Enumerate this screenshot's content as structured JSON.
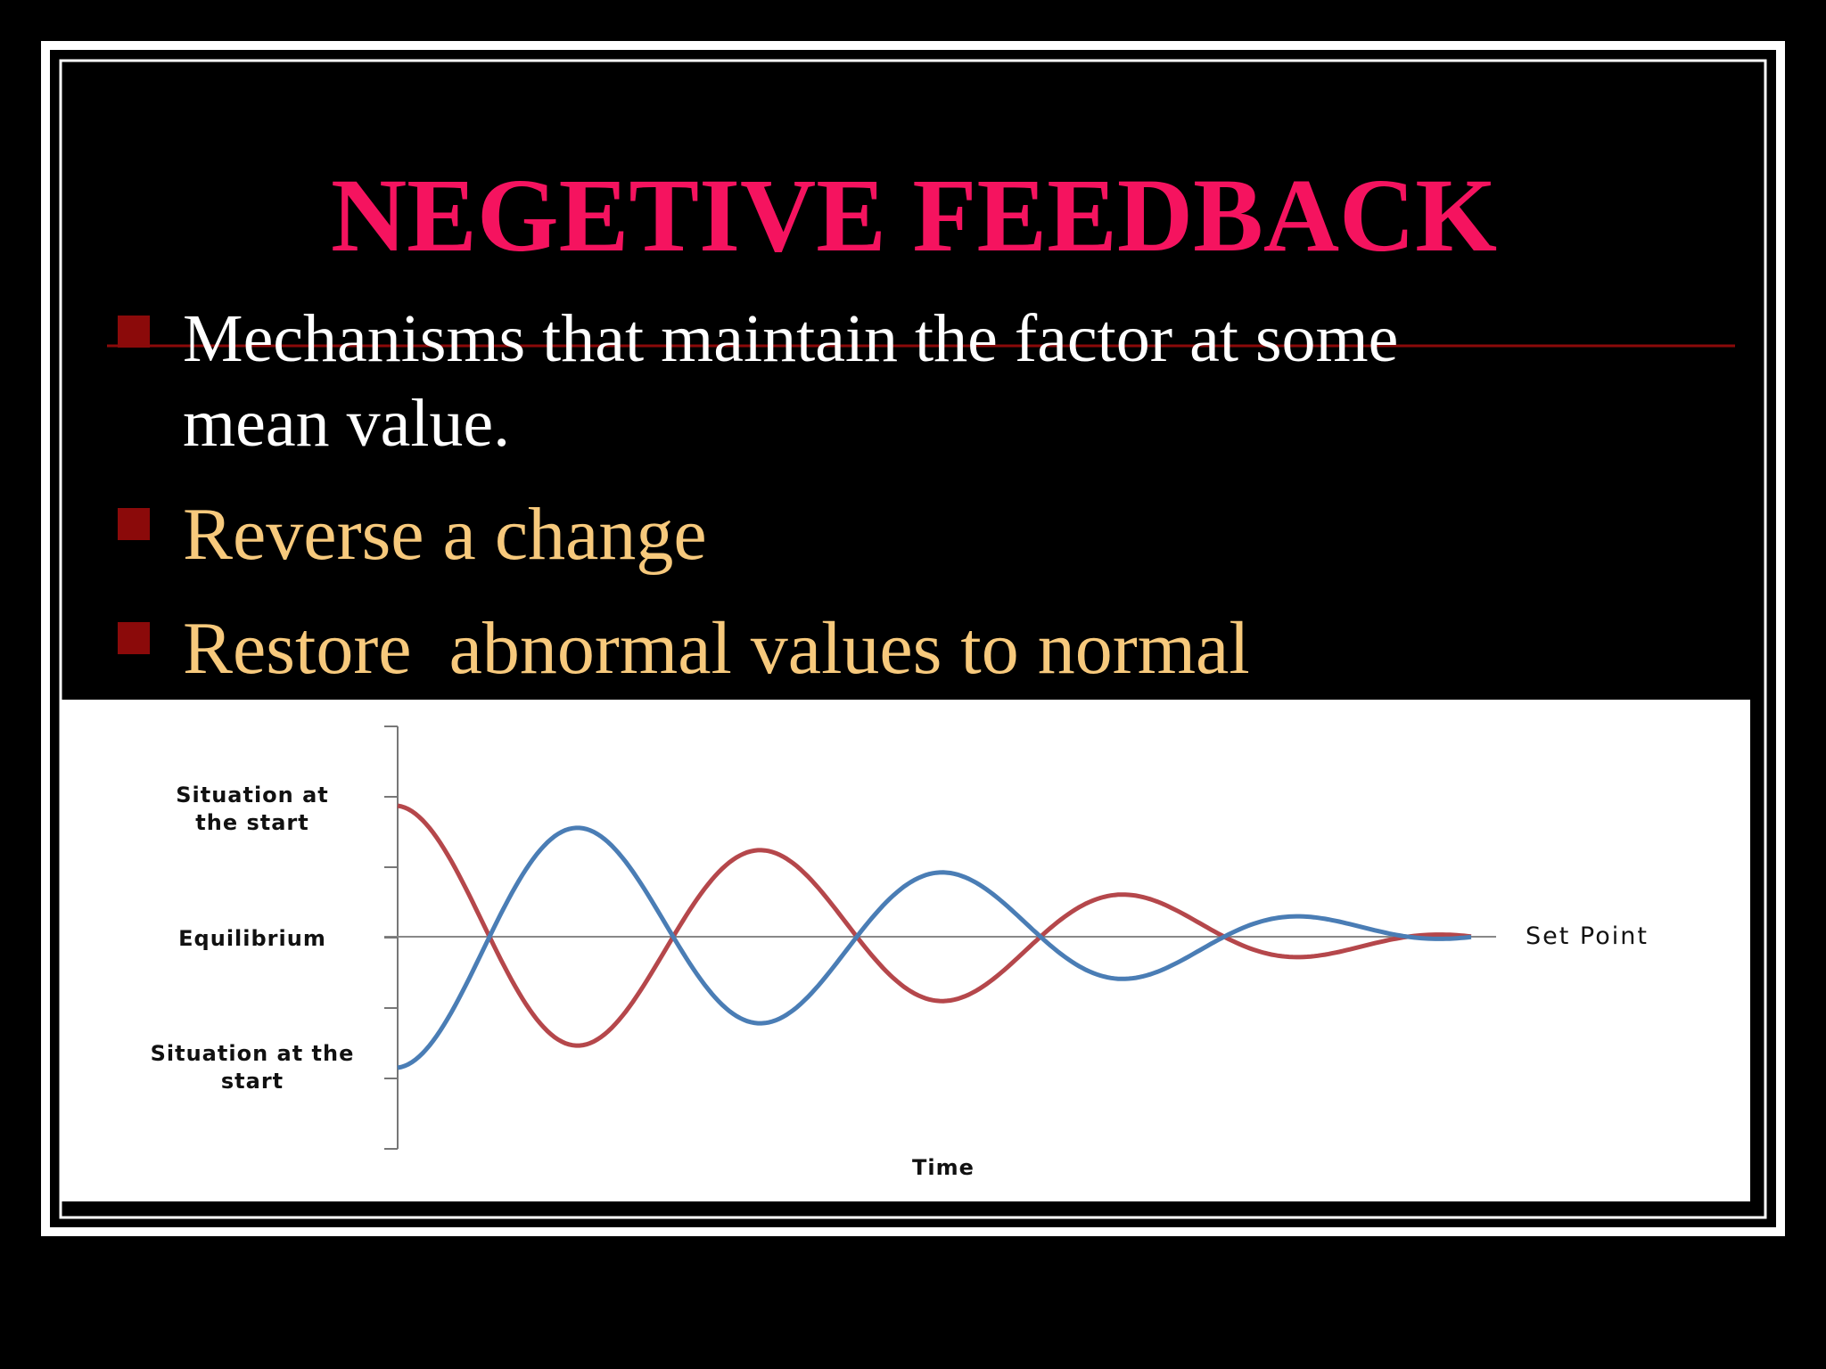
{
  "slide": {
    "title": "NEGETIVE FEEDBACK",
    "bullets": [
      {
        "lines": [
          "Mechanisms that maintain the factor at some",
          "mean value."
        ]
      },
      {
        "lines": [
          "Reverse a change"
        ]
      },
      {
        "lines": [
          "Restore  abnormal values to normal"
        ]
      }
    ],
    "diagram": {
      "start_top_label": [
        "Situation at",
        "the start"
      ],
      "equilibrium_label": "Equilibrium",
      "start_bottom_label": [
        "Situation at the",
        "start"
      ],
      "set_point_label": "Set Point",
      "x_axis_label": "Time"
    }
  }
}
